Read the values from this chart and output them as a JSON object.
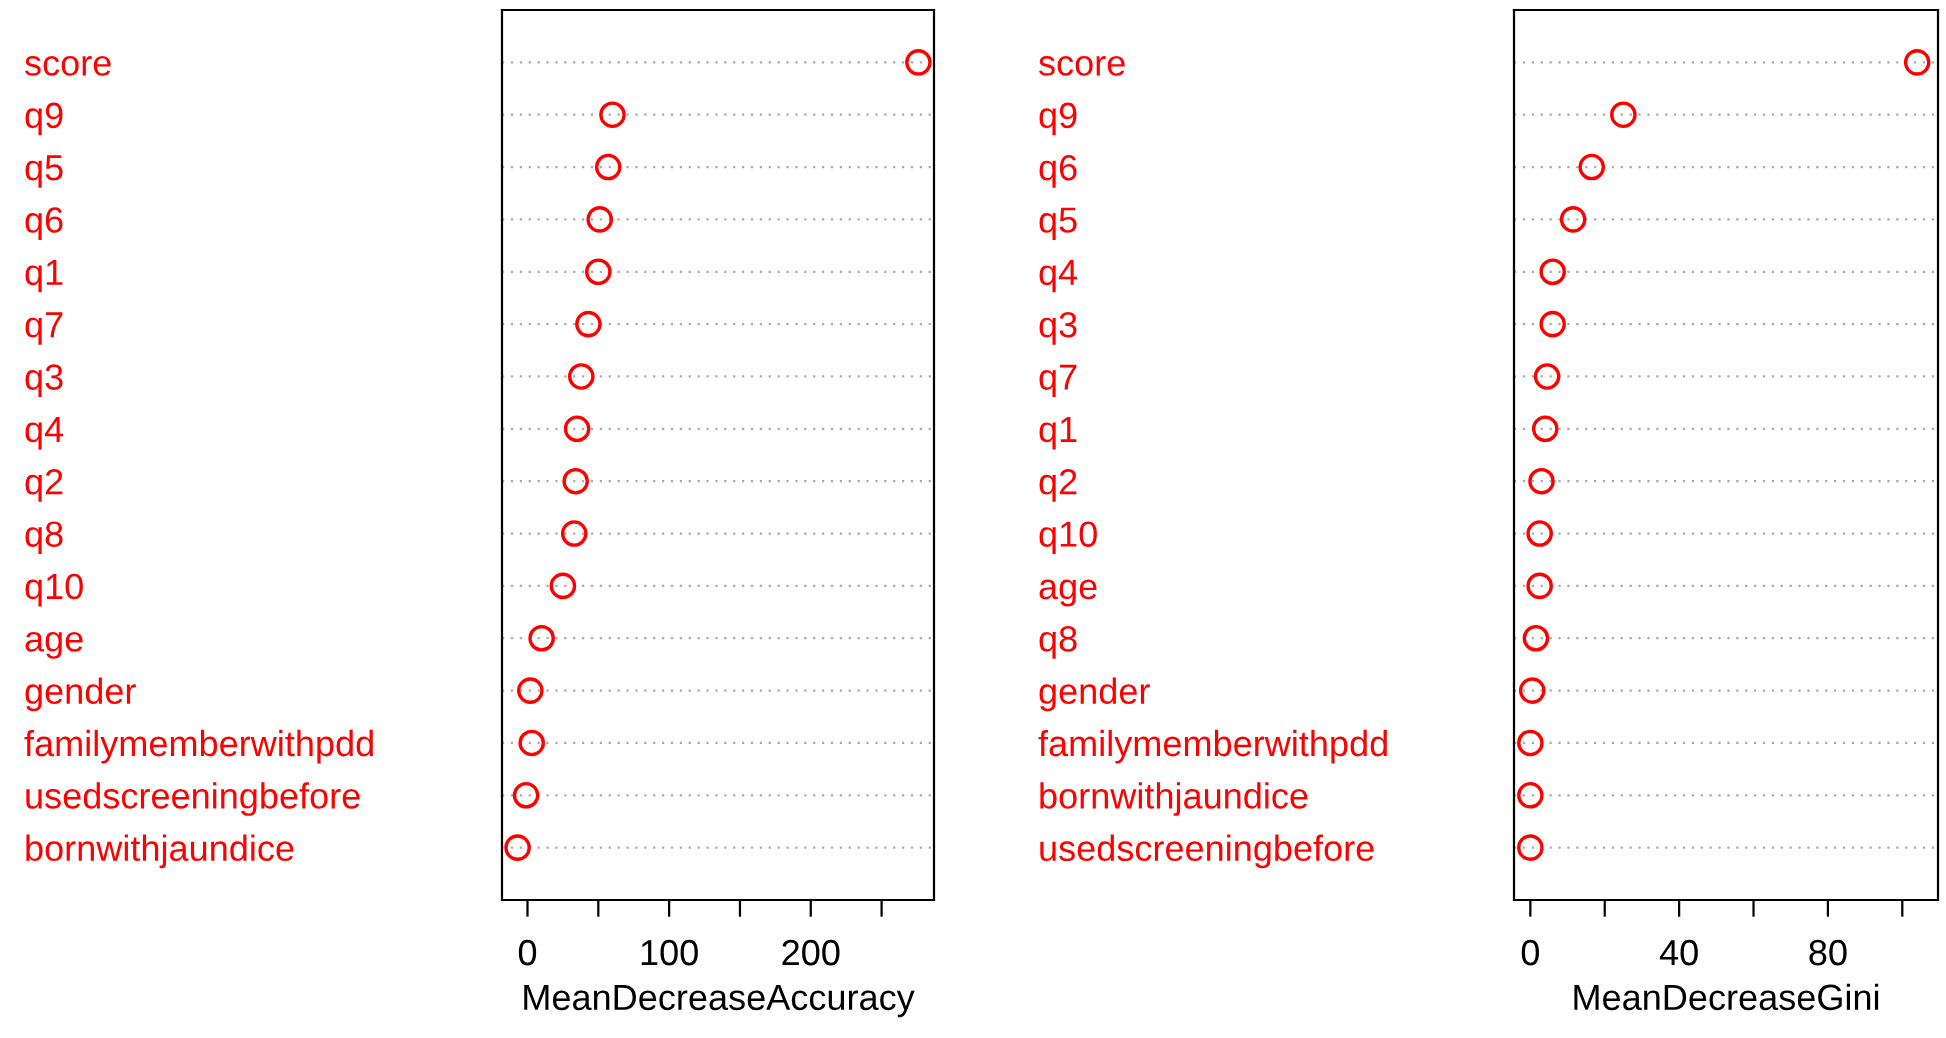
{
  "chart_data": [
    {
      "type": "scatter",
      "orientation": "horizontal",
      "xlabel": "MeanDecreaseAccuracy",
      "marker": "circle",
      "grid": "y",
      "xlim": [
        -18,
        287
      ],
      "xticks": [
        0,
        {
          "value": 50,
          "label": null
        },
        100,
        {
          "value": 150,
          "label": null
        },
        200,
        {
          "value": 250,
          "label": null
        }
      ],
      "categories": [
        "score",
        "q9",
        "q5",
        "q6",
        "q1",
        "q7",
        "q3",
        "q4",
        "q2",
        "q8",
        "q10",
        "age",
        "gender",
        "familymemberwithpdd",
        "usedscreeningbefore",
        "bornwithjaundice"
      ],
      "series": [
        {
          "color": "#ff0000",
          "values": [
            276,
            60,
            57,
            51,
            50,
            43,
            38,
            35,
            34,
            33,
            25,
            10,
            2,
            3,
            -1,
            -7
          ]
        }
      ]
    },
    {
      "type": "scatter",
      "orientation": "horizontal",
      "xlabel": "MeanDecreaseGini",
      "marker": "circle",
      "grid": "y",
      "xlim": [
        -4.4,
        109.6
      ],
      "xticks": [
        0,
        {
          "value": 20,
          "label": null
        },
        40,
        {
          "value": 60,
          "label": null
        },
        80,
        {
          "value": 100,
          "label": null
        }
      ],
      "categories": [
        "score",
        "q9",
        "q6",
        "q5",
        "q4",
        "q3",
        "q7",
        "q1",
        "q2",
        "q10",
        "age",
        "q8",
        "gender",
        "familymemberwithpdd",
        "bornwithjaundice",
        "usedscreeningbefore"
      ],
      "series": [
        {
          "color": "#ff0000",
          "values": [
            104,
            25,
            16.5,
            11.5,
            6,
            6,
            4.5,
            4,
            3,
            2.5,
            2.5,
            1.5,
            0.5,
            0,
            0,
            0
          ]
        }
      ]
    }
  ]
}
